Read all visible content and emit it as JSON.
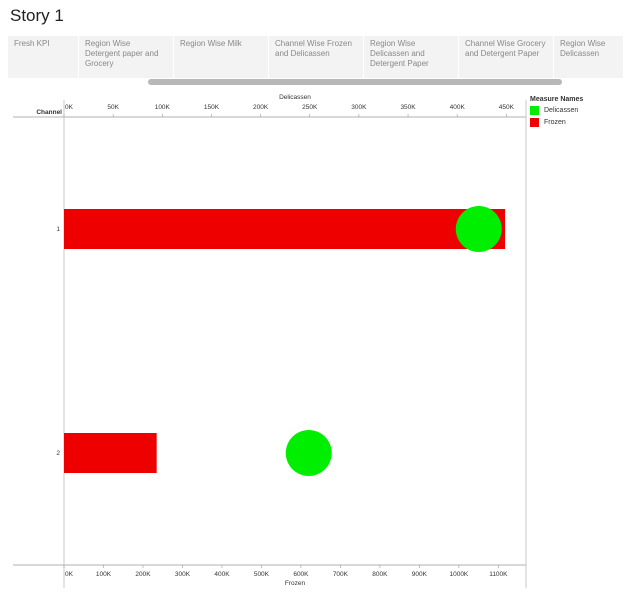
{
  "story": {
    "title": "Story 1"
  },
  "tabs": [
    {
      "label": "Fresh KPI",
      "active": false
    },
    {
      "label": "Region Wise\nDetergent paper and\nGrocery",
      "active": false
    },
    {
      "label": "Region Wise Milk",
      "active": false
    },
    {
      "label": "Channel Wise Frozen\nand Delicassen",
      "active": true
    },
    {
      "label": "Region Wise\nDelicassen and\nDetergent Paper",
      "active": false
    },
    {
      "label": "Channel Wise Grocery\nand Detergent Paper",
      "active": false
    },
    {
      "label": "Region Wise\nDelicassen",
      "active": false
    }
  ],
  "legend": {
    "title": "Measure Names",
    "items": [
      {
        "label": "Delicassen",
        "color": "#00ee00"
      },
      {
        "label": "Frozen",
        "color": "#ee0000"
      }
    ]
  },
  "chart_data": {
    "type": "bar",
    "row_header": "Channel",
    "categories": [
      "1",
      "2"
    ],
    "top_axis": {
      "title": "Delicassen",
      "range": [
        0,
        470000
      ],
      "ticks": [
        0,
        50000,
        100000,
        150000,
        200000,
        250000,
        300000,
        350000,
        400000,
        450000
      ],
      "tick_labels": [
        "0K",
        "50K",
        "100K",
        "150K",
        "200K",
        "250K",
        "300K",
        "350K",
        "400K",
        "450K"
      ]
    },
    "bottom_axis": {
      "title": "Frozen",
      "range": [
        0,
        1170000
      ],
      "ticks": [
        0,
        100000,
        200000,
        300000,
        400000,
        500000,
        600000,
        700000,
        800000,
        900000,
        1000000,
        1100000
      ],
      "tick_labels": [
        "0K",
        "100K",
        "200K",
        "300K",
        "400K",
        "500K",
        "600K",
        "700K",
        "800K",
        "900K",
        "1000K",
        "1100K"
      ]
    },
    "series": [
      {
        "name": "Frozen",
        "mark": "bar",
        "axis": "bottom",
        "color": "#ee0000",
        "values": [
          1116979,
          234671
        ]
      },
      {
        "name": "Delicassen",
        "mark": "circle",
        "axis": "top",
        "color": "#00ee00",
        "values": [
          421955,
          248988
        ]
      }
    ]
  }
}
